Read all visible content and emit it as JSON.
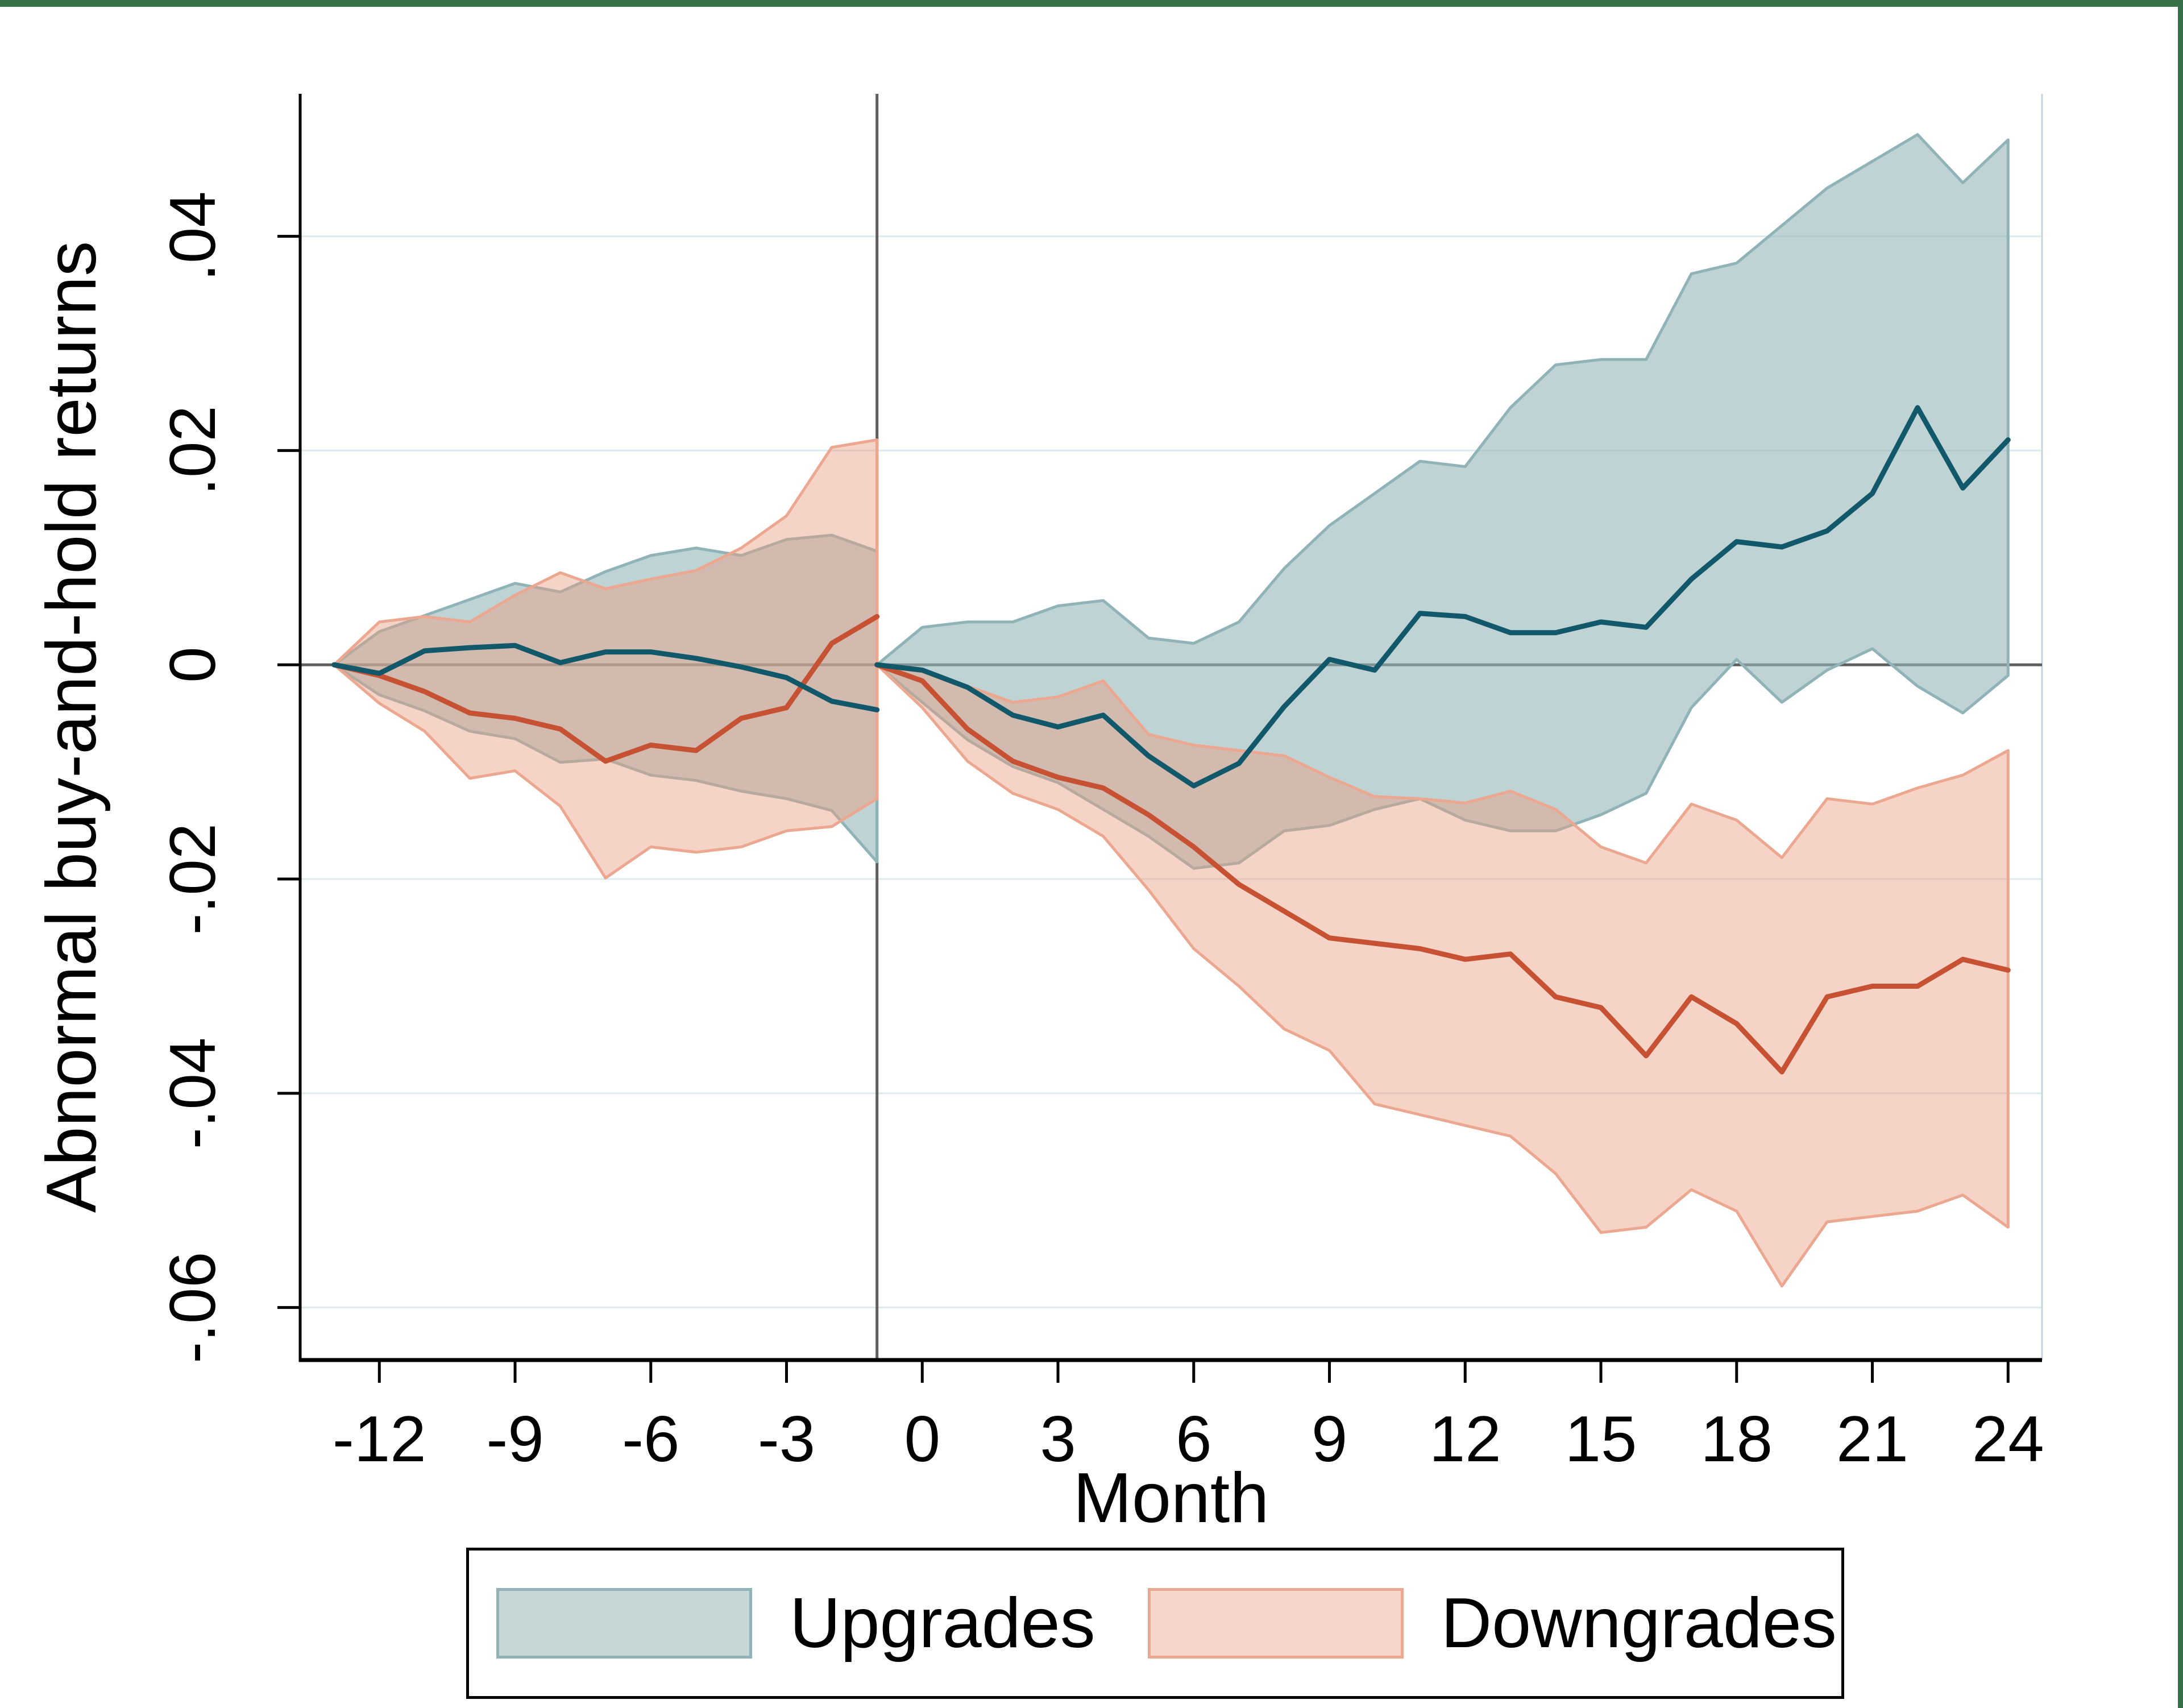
{
  "page": {
    "border_color": "#377148",
    "background": "#ffffff"
  },
  "chart_data": {
    "type": "line",
    "title": "",
    "xlabel": "Month",
    "ylabel": "Abnormal buy-and-hold returns",
    "xlim": [
      -13.75,
      24.75
    ],
    "ylim": [
      -0.0649,
      0.0533
    ],
    "grid": true,
    "legend_position": "bottom",
    "refs": {
      "vline_x": -1,
      "hline_y": 0
    },
    "axes": {
      "x": {
        "label": "Month",
        "ticks": [
          {
            "value": -12,
            "label": "-12"
          },
          {
            "value": -9,
            "label": "-9"
          },
          {
            "value": -6,
            "label": "-6"
          },
          {
            "value": -3,
            "label": "-3"
          },
          {
            "value": 0,
            "label": "0"
          },
          {
            "value": 3,
            "label": "3"
          },
          {
            "value": 6,
            "label": "6"
          },
          {
            "value": 9,
            "label": "9"
          },
          {
            "value": 12,
            "label": "12"
          },
          {
            "value": 15,
            "label": "15"
          },
          {
            "value": 18,
            "label": "18"
          },
          {
            "value": 21,
            "label": "21"
          },
          {
            "value": 24,
            "label": "24"
          }
        ]
      },
      "y": {
        "label": "Abnormal buy-and-hold returns",
        "ticks": [
          {
            "value": 0.04,
            "label": ".04"
          },
          {
            "value": 0.02,
            "label": ".02"
          },
          {
            "value": 0,
            "label": "0"
          },
          {
            "value": -0.02,
            "label": "-.02"
          },
          {
            "value": -0.04,
            "label": "-.04"
          },
          {
            "value": -0.06,
            "label": "-.06"
          }
        ]
      }
    },
    "colors": {
      "upgrades_line": "#11586a",
      "upgrades_band_edge": "#8fb3b6",
      "upgrades_band_fill": "rgba(148,180,183,0.60)",
      "downgrades_line": "#c65233",
      "downgrades_band_edge": "#eba78f",
      "downgrades_band_fill": "rgba(232,158,128,0.45)",
      "gridline": "#dcebed",
      "axis": "#000000",
      "refline": "#5f5f5f",
      "right_frame": "#c9d6d8",
      "text": "#000000"
    },
    "series": [
      {
        "name": "Upgrades",
        "segments": [
          {
            "months": [
              -13,
              -12,
              -11,
              -10,
              -9,
              -8,
              -7,
              -6,
              -5,
              -4,
              -3,
              -2,
              -1
            ],
            "mean": [
              0,
              -0.0008,
              0.0013,
              0.0016,
              0.0018,
              0.0002,
              0.0012,
              0.0012,
              0.0006,
              -0.0002,
              -0.0012,
              -0.0034,
              -0.0042
            ],
            "upper": [
              0,
              0.0031,
              0.0046,
              0.0061,
              0.0076,
              0.0068,
              0.0087,
              0.0102,
              0.0109,
              0.0102,
              0.0117,
              0.0121,
              0.0106
            ],
            "lower": [
              0,
              -0.0028,
              -0.0043,
              -0.0062,
              -0.0069,
              -0.0091,
              -0.0088,
              -0.0103,
              -0.0108,
              -0.0118,
              -0.0125,
              -0.0136,
              -0.0184
            ]
          },
          {
            "months": [
              -1,
              0,
              1,
              2,
              3,
              4,
              5,
              6,
              7,
              8,
              9,
              10,
              11,
              12,
              13,
              14,
              15,
              16,
              17,
              18,
              19,
              20,
              21,
              22,
              23,
              24
            ],
            "mean": [
              0,
              -0.0005,
              -0.0021,
              -0.0047,
              -0.0058,
              -0.0047,
              -0.0085,
              -0.0113,
              -0.0092,
              -0.0039,
              0.0005,
              -0.0005,
              0.0048,
              0.0045,
              0.003,
              0.003,
              0.004,
              0.0035,
              0.008,
              0.0115,
              0.011,
              0.0125,
              0.016,
              0.024,
              0.0165,
              0.021
            ],
            "upper": [
              0,
              0.0035,
              0.004,
              0.004,
              0.0055,
              0.006,
              0.0025,
              0.002,
              0.004,
              0.009,
              0.013,
              0.016,
              0.019,
              0.0185,
              0.024,
              0.028,
              0.0285,
              0.0285,
              0.0365,
              0.0375,
              0.041,
              0.0445,
              0.047,
              0.0495,
              0.045,
              0.049
            ],
            "lower": [
              0,
              -0.0035,
              -0.007,
              -0.0095,
              -0.011,
              -0.0135,
              -0.016,
              -0.019,
              -0.0185,
              -0.0155,
              -0.015,
              -0.0135,
              -0.0125,
              -0.0145,
              -0.0155,
              -0.0155,
              -0.014,
              -0.012,
              -0.004,
              0.0005,
              -0.0035,
              -0.0005,
              0.0015,
              -0.002,
              -0.0045,
              -0.001
            ]
          }
        ]
      },
      {
        "name": "Downgrades",
        "segments": [
          {
            "months": [
              -13,
              -12,
              -11,
              -10,
              -9,
              -8,
              -7,
              -6,
              -5,
              -4,
              -3,
              -2,
              -1
            ],
            "mean": [
              0,
              -0.001,
              -0.0025,
              -0.0045,
              -0.005,
              -0.006,
              -0.009,
              -0.0075,
              -0.008,
              -0.005,
              -0.004,
              0.002,
              0.0045
            ],
            "upper": [
              0,
              0.004,
              0.0045,
              0.004,
              0.0065,
              0.0086,
              0.0071,
              0.008,
              0.0088,
              0.0109,
              0.0139,
              0.0203,
              0.021
            ],
            "lower": [
              0,
              -0.0036,
              -0.0062,
              -0.0106,
              -0.0099,
              -0.0132,
              -0.0199,
              -0.017,
              -0.0175,
              -0.017,
              -0.0155,
              -0.0151,
              -0.0125
            ]
          },
          {
            "months": [
              -1,
              0,
              1,
              2,
              3,
              4,
              5,
              6,
              7,
              8,
              9,
              10,
              11,
              12,
              13,
              14,
              15,
              16,
              17,
              18,
              19,
              20,
              21,
              22,
              23,
              24
            ],
            "mean": [
              0,
              -0.0015,
              -0.006,
              -0.009,
              -0.0105,
              -0.0115,
              -0.014,
              -0.017,
              -0.0205,
              -0.023,
              -0.0255,
              -0.026,
              -0.0265,
              -0.0275,
              -0.027,
              -0.031,
              -0.032,
              -0.0365,
              -0.031,
              -0.0335,
              -0.038,
              -0.031,
              -0.03,
              -0.03,
              -0.0275,
              -0.0285
            ],
            "upper": [
              0,
              -0.0005,
              -0.002,
              -0.0035,
              -0.003,
              -0.0015,
              -0.0065,
              -0.0075,
              -0.008,
              -0.0085,
              -0.0105,
              -0.0123,
              -0.0125,
              -0.0129,
              -0.0118,
              -0.0135,
              -0.017,
              -0.0185,
              -0.013,
              -0.0145,
              -0.018,
              -0.0125,
              -0.013,
              -0.0115,
              -0.0103,
              -0.008
            ],
            "lower": [
              0,
              -0.004,
              -0.009,
              -0.012,
              -0.0135,
              -0.016,
              -0.021,
              -0.0265,
              -0.03,
              -0.034,
              -0.036,
              -0.041,
              -0.042,
              -0.043,
              -0.044,
              -0.0475,
              -0.053,
              -0.0525,
              -0.049,
              -0.051,
              -0.058,
              -0.052,
              -0.0515,
              -0.051,
              -0.0495,
              -0.0525
            ]
          }
        ]
      }
    ],
    "legend": {
      "items": [
        {
          "label": "Upgrades",
          "fill": "#c6d7d8",
          "edge": "#8fb3b6"
        },
        {
          "label": "Downgrades",
          "fill": "#f4d7ca",
          "edge": "#eba78f"
        }
      ]
    }
  }
}
